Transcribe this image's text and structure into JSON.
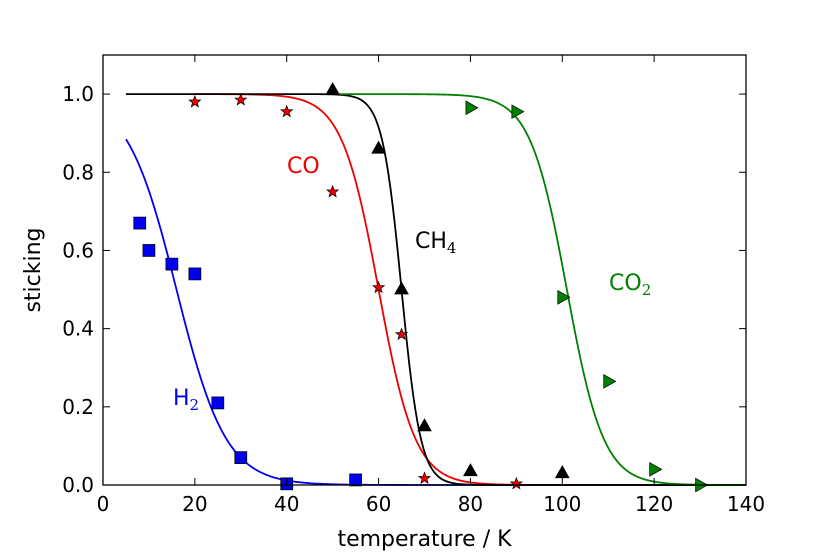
{
  "chart_data": {
    "type": "scatter",
    "title": "",
    "xlabel": "temperature / K",
    "ylabel": "sticking",
    "xlim": [
      0,
      140
    ],
    "ylim": [
      0,
      1.1
    ],
    "xticks": [
      0,
      20,
      40,
      60,
      80,
      100,
      120,
      140
    ],
    "yticks": [
      0.0,
      0.2,
      0.4,
      0.6,
      0.8,
      1.0
    ],
    "xtick_labels": [
      "0",
      "20",
      "40",
      "60",
      "80",
      "100",
      "120",
      "140"
    ],
    "ytick_labels": [
      "0.0",
      "0.2",
      "0.4",
      "0.6",
      "0.8",
      "1.0"
    ],
    "grid": false,
    "legend": "none",
    "series": [
      {
        "label_main": "H",
        "label_sub": "2",
        "color": "#0000ee",
        "marker": "square",
        "points": [
          [
            8,
            0.67
          ],
          [
            10,
            0.6
          ],
          [
            15,
            0.565
          ],
          [
            20,
            0.54
          ],
          [
            25,
            0.21
          ],
          [
            30,
            0.07
          ],
          [
            40,
            0.003
          ],
          [
            55,
            0.013
          ]
        ],
        "fit": {
          "t0": 16,
          "width": 5.4,
          "x_start": 5,
          "x_end": 140
        }
      },
      {
        "label_main": "CO",
        "label_sub": "",
        "color": "#ee0000",
        "marker": "star",
        "points": [
          [
            20,
            0.98
          ],
          [
            30,
            0.985
          ],
          [
            40,
            0.955
          ],
          [
            50,
            0.75
          ],
          [
            60,
            0.505
          ],
          [
            65,
            0.385
          ],
          [
            70,
            0.017
          ],
          [
            90,
            0.003
          ]
        ],
        "fit": {
          "t0": 60,
          "width": 4.0,
          "x_start": 20,
          "x_end": 140
        }
      },
      {
        "label_main": "CH",
        "label_sub": "4",
        "color": "#000000",
        "marker": "triangle-up",
        "points": [
          [
            50,
            1.01
          ],
          [
            60,
            0.86
          ],
          [
            65,
            0.5
          ],
          [
            70,
            0.15
          ],
          [
            80,
            0.035
          ],
          [
            100,
            0.03
          ]
        ],
        "fit": {
          "t0": 65,
          "width": 2.1,
          "x_start": 5,
          "x_end": 140
        }
      },
      {
        "label_main": "CO",
        "label_sub": "2",
        "color": "#008000",
        "marker": "triangle-right",
        "points": [
          [
            80,
            0.965
          ],
          [
            90,
            0.955
          ],
          [
            100,
            0.48
          ],
          [
            110,
            0.265
          ],
          [
            120,
            0.04
          ],
          [
            130,
            0.0
          ]
        ],
        "fit": {
          "t0": 101,
          "width": 4.0,
          "x_start": 50,
          "x_end": 140
        }
      }
    ]
  }
}
